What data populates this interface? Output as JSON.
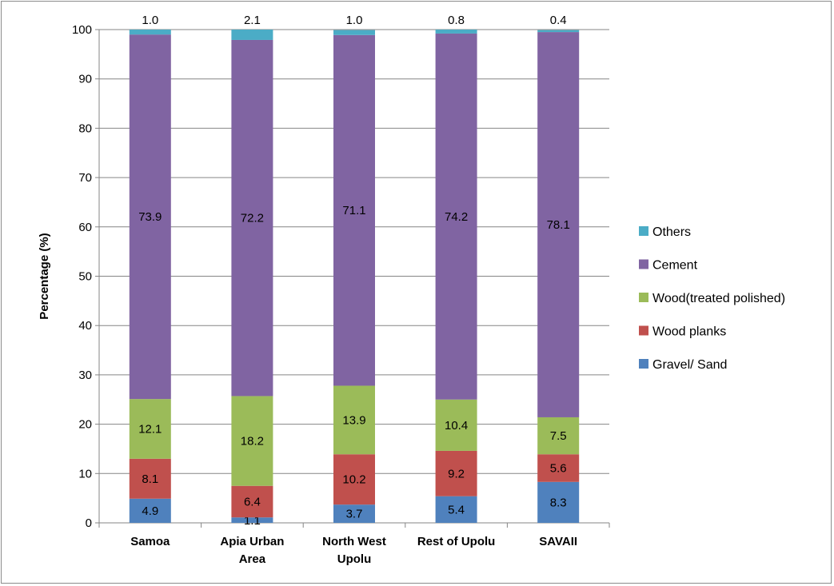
{
  "chart_data": {
    "type": "bar",
    "stacked": true,
    "title": "",
    "xlabel": "",
    "ylabel": "Percentage (%)",
    "ylim": [
      0,
      100
    ],
    "yticks": [
      0,
      10,
      20,
      30,
      40,
      50,
      60,
      70,
      80,
      90,
      100
    ],
    "grid": true,
    "legend_position": "right",
    "categories": [
      [
        "Samoa"
      ],
      [
        "Apia Urban",
        "Area"
      ],
      [
        "North West",
        "Upolu"
      ],
      [
        "Rest of Upolu"
      ],
      [
        "SAVAII"
      ]
    ],
    "series": [
      {
        "name": "Gravel/ Sand",
        "color": "#4f81bd",
        "values": [
          4.9,
          1.1,
          3.7,
          5.4,
          8.3
        ]
      },
      {
        "name": "Wood planks",
        "color": "#c0504d",
        "values": [
          8.1,
          6.4,
          10.2,
          9.2,
          5.6
        ]
      },
      {
        "name": "Wood(treated polished)",
        "color": "#9bbb59",
        "values": [
          12.1,
          18.2,
          13.9,
          10.4,
          7.5
        ]
      },
      {
        "name": "Cement",
        "color": "#8064a2",
        "values": [
          73.9,
          72.2,
          71.1,
          74.2,
          78.1
        ]
      },
      {
        "name": "Others",
        "color": "#4bacc6",
        "values": [
          1.0,
          2.1,
          1.0,
          0.8,
          0.4
        ]
      }
    ],
    "legend_order": [
      "Others",
      "Cement",
      "Wood(treated polished)",
      "Wood planks",
      "Gravel/ Sand"
    ]
  }
}
